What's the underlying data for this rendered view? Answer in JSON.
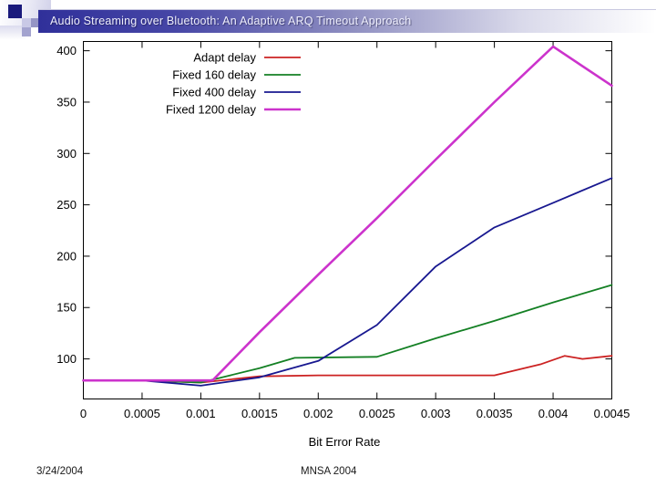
{
  "header": {
    "title": "Audio Streaming over Bluetooth: An Adaptive ARQ Timeout Approach"
  },
  "footer": {
    "date": "3/24/2004",
    "conference": "MNSA 2004"
  },
  "theme": {
    "title_bar_navy": "#30309a",
    "deco_square_navy": "#1a1a7c",
    "deco_square_periwinkle": "#9595c5",
    "deco_square_light": "#c9c9e6",
    "axis_color": "#000000"
  },
  "chart_data": {
    "type": "line",
    "title": "",
    "xlabel": "Bit Error Rate",
    "ylabel": "",
    "grid": false,
    "legend_position": "top-center-inside",
    "xlim": [
      0,
      0.0045
    ],
    "ylim": [
      61,
      409
    ],
    "x_ticks": [
      "0",
      "0.0005",
      "0.001",
      "0.0015",
      "0.002",
      "0.0025",
      "0.003",
      "0.0035",
      "0.004",
      "0.0045"
    ],
    "x_tick_values": [
      0,
      0.0005,
      0.001,
      0.0015,
      0.002,
      0.0025,
      0.003,
      0.0035,
      0.004,
      0.0045
    ],
    "y_ticks": [
      "100",
      "150",
      "200",
      "250",
      "300",
      "350",
      "400"
    ],
    "y_tick_values": [
      100,
      150,
      200,
      250,
      300,
      350,
      400
    ],
    "series": [
      {
        "name": "Adapt delay",
        "color": "#cc2222",
        "width": 1.8,
        "x": [
          0,
          0.0005,
          0.001,
          0.0015,
          0.002,
          0.0025,
          0.003,
          0.0035,
          0.0039,
          0.0041,
          0.00425,
          0.0045
        ],
        "y": [
          79,
          79,
          77,
          83,
          84,
          84,
          84,
          84,
          95,
          103,
          100,
          103
        ]
      },
      {
        "name": "Fixed 160 delay",
        "color": "#148024",
        "width": 1.8,
        "x": [
          0,
          0.0005,
          0.001,
          0.0015,
          0.0018,
          0.0025,
          0.003,
          0.0035,
          0.004,
          0.0045
        ],
        "y": [
          79,
          79,
          77,
          91,
          101,
          102,
          120,
          137,
          155,
          172
        ]
      },
      {
        "name": "Fixed 400 delay",
        "color": "#181890",
        "width": 1.8,
        "x": [
          0,
          0.0005,
          0.001,
          0.0015,
          0.002,
          0.0025,
          0.003,
          0.0035,
          0.004,
          0.0045
        ],
        "y": [
          79,
          79,
          74,
          82,
          98,
          133,
          190,
          228,
          252,
          276
        ]
      },
      {
        "name": "Fixed 1200 delay",
        "color": "#cc33cc",
        "width": 2.6,
        "x": [
          0,
          0.0005,
          0.0011,
          0.0015,
          0.002,
          0.0025,
          0.003,
          0.0035,
          0.004,
          0.0045
        ],
        "y": [
          79,
          79,
          79,
          126,
          182,
          237,
          294,
          350,
          404,
          366
        ]
      }
    ]
  }
}
